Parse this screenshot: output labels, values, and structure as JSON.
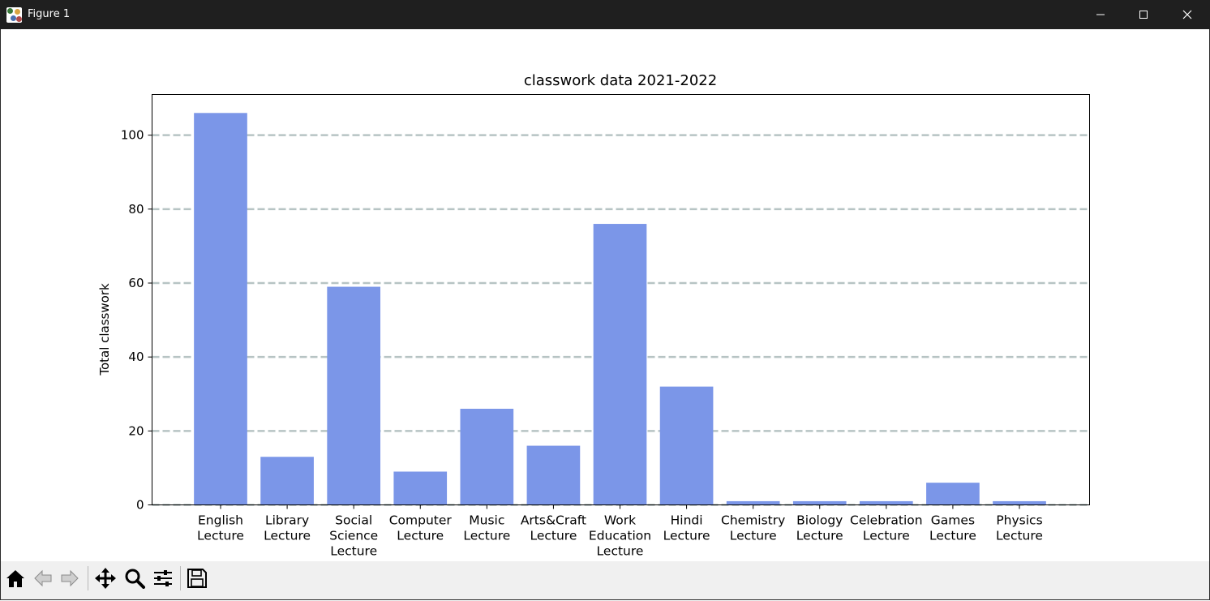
{
  "window": {
    "title": "Figure 1",
    "controls": [
      "minimize",
      "maximize",
      "close"
    ]
  },
  "toolbar": {
    "tools": [
      {
        "name": "home-icon",
        "label": "Home"
      },
      {
        "name": "back-icon",
        "label": "Back"
      },
      {
        "name": "forward-icon",
        "label": "Forward"
      },
      {
        "name": "pan-icon",
        "label": "Pan"
      },
      {
        "name": "zoom-icon",
        "label": "Zoom"
      },
      {
        "name": "configure-subplots-icon",
        "label": "Subplots"
      },
      {
        "name": "save-icon",
        "label": "Save"
      }
    ]
  },
  "chart_data": {
    "type": "bar",
    "title": "classwork data 2021-2022",
    "xlabel": "",
    "ylabel": "Total classwork",
    "ylim": [
      0,
      111
    ],
    "yticks": [
      0,
      20,
      40,
      60,
      80,
      100
    ],
    "grid": {
      "axis": "y",
      "style": "dashed",
      "color": "#b7c4c4"
    },
    "bar_color": "#7b96e8",
    "categories": [
      [
        "English",
        "Lecture"
      ],
      [
        "Library",
        "Lecture"
      ],
      [
        "Social",
        "Science",
        "Lecture"
      ],
      [
        "Computer",
        "Lecture"
      ],
      [
        "Music",
        "Lecture"
      ],
      [
        "Arts&Craft",
        "Lecture"
      ],
      [
        "Work",
        "Education",
        "Lecture"
      ],
      [
        "Hindi",
        "Lecture"
      ],
      [
        "Chemistry",
        "Lecture"
      ],
      [
        "Biology",
        "Lecture"
      ],
      [
        "Celebration",
        "Lecture"
      ],
      [
        "Games",
        "Lecture"
      ],
      [
        "Physics",
        "Lecture"
      ]
    ],
    "values": [
      106,
      13,
      59,
      9,
      26,
      16,
      76,
      32,
      1,
      1,
      1,
      6,
      1
    ]
  }
}
